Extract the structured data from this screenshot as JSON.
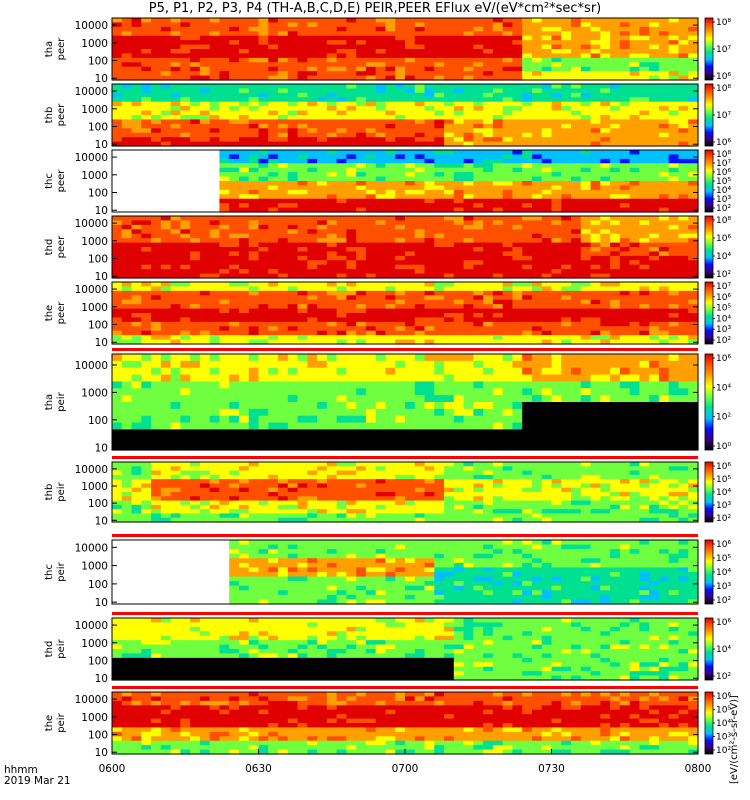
{
  "header": {
    "title": "P5, P1, P2, P3, P4 (TH-A,B,C,D,E) PEIR,PEER EFlux eV/(eV*cm²*sec*sr)"
  },
  "footer": {
    "line1": "hhmm",
    "line2": "2019 Mar 21"
  },
  "colorbar_unit_label": "[eV/(cm²-s-sr-eV)]",
  "chart_data": {
    "type": "heatmap",
    "x_unit": "hhmm",
    "date": "2019 Mar 21",
    "x_range": [
      "0600",
      "0800"
    ],
    "x_ticks": [
      "0600",
      "0630",
      "0700",
      "0730",
      "0800"
    ],
    "y_scale": "log",
    "y_ticks": [
      "10",
      "100",
      "1000",
      "10000"
    ],
    "colormap": [
      "#000000",
      "#3b0080",
      "#0010ff",
      "#00c0ff",
      "#00e090",
      "#70ff40",
      "#ffff00",
      "#ffa000",
      "#ff5000",
      "#e00000"
    ],
    "panels": [
      {
        "probe": "tha",
        "species": "peer",
        "ylabel": [
          "tha",
          "peer"
        ],
        "colorbar_ticks": [
          "10⁶",
          "10⁷",
          "10⁸"
        ],
        "status_bar": false
      },
      {
        "probe": "thb",
        "species": "peer",
        "ylabel": [
          "thb",
          "peer"
        ],
        "colorbar_ticks": [
          "10⁶",
          "10⁷",
          "10⁸"
        ],
        "status_bar": false
      },
      {
        "probe": "thc",
        "species": "peer",
        "ylabel": [
          "thc",
          "peer"
        ],
        "colorbar_ticks": [
          "10²",
          "10³",
          "10⁴",
          "10⁵",
          "10⁶",
          "10⁷",
          "10⁸"
        ],
        "status_bar": false
      },
      {
        "probe": "thd",
        "species": "peer",
        "ylabel": [
          "thd",
          "peer"
        ],
        "colorbar_ticks": [
          "10²",
          "10⁴",
          "10⁶",
          "10⁸"
        ],
        "status_bar": false
      },
      {
        "probe": "the",
        "species": "peer",
        "ylabel": [
          "the",
          "peer"
        ],
        "colorbar_ticks": [
          "10²",
          "10³",
          "10⁴",
          "10⁵",
          "10⁶",
          "10⁷"
        ],
        "status_bar": false
      },
      {
        "probe": "tha",
        "species": "peir",
        "ylabel": [
          "tha",
          "peir"
        ],
        "colorbar_ticks": [
          "10⁰",
          "10²",
          "10⁴",
          "10⁶"
        ],
        "status_bar": true
      },
      {
        "probe": "thb",
        "species": "peir",
        "ylabel": [
          "thb",
          "peir"
        ],
        "colorbar_ticks": [
          "10²",
          "10³",
          "10⁴",
          "10⁵",
          "10⁶"
        ],
        "status_bar": true
      },
      {
        "probe": "thc",
        "species": "peir",
        "ylabel": [
          "thc",
          "peir"
        ],
        "colorbar_ticks": [
          "10²",
          "10³",
          "10⁴",
          "10⁵",
          "10⁶"
        ],
        "status_bar": true
      },
      {
        "probe": "thd",
        "species": "peir",
        "ylabel": [
          "thd",
          "peir"
        ],
        "colorbar_ticks": [
          "10²",
          "10⁴",
          "10⁶"
        ],
        "status_bar": true
      },
      {
        "probe": "the",
        "species": "peir",
        "ylabel": [
          "the",
          "peir"
        ],
        "colorbar_ticks": [
          "10²",
          "10³",
          "10⁴",
          "10⁵",
          "10⁶"
        ],
        "status_bar": true
      }
    ]
  }
}
